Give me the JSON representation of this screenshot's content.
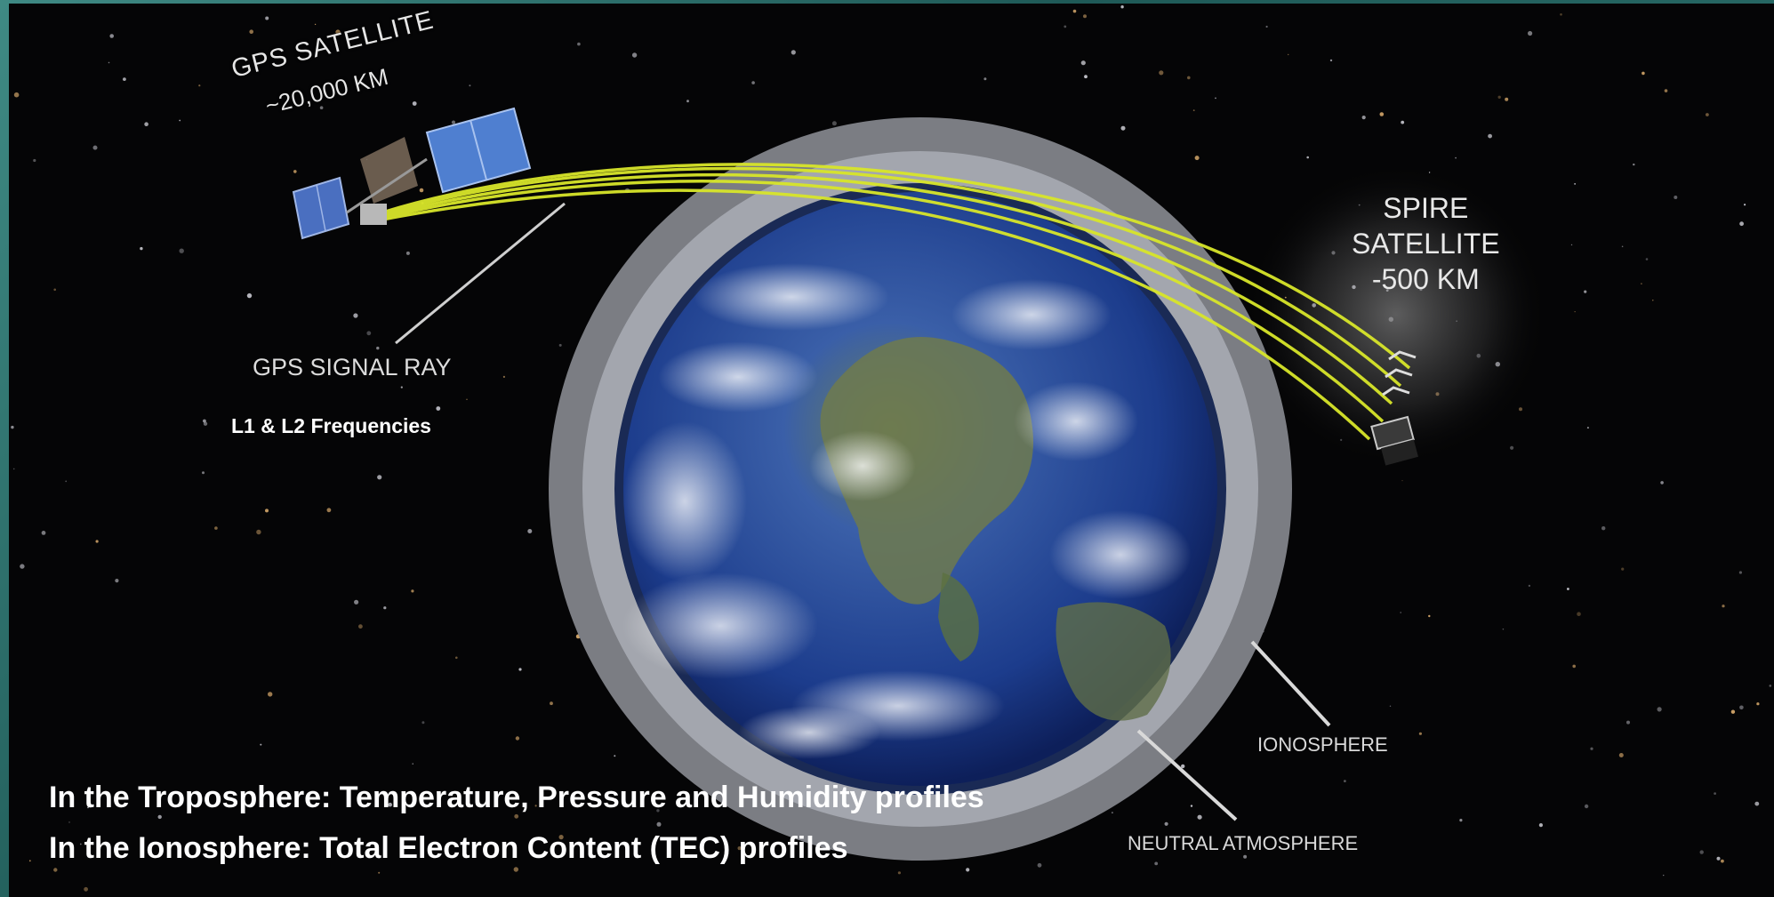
{
  "labels": {
    "gps_satellite_title": "GPS SATELLITE",
    "gps_satellite_altitude": "~20,000 KM",
    "gps_signal_ray": "GPS SIGNAL RAY",
    "frequencies": "L1 & L2 Frequencies",
    "spire_satellite": [
      "SPIRE",
      "SATELLITE",
      "-500 KM"
    ],
    "ionosphere": "IONOSPHERE",
    "neutral_atmosphere": "NEUTRAL ATMOSPHERE"
  },
  "captions": {
    "troposphere": "In the Troposphere: Temperature, Pressure and Humidity profiles",
    "ionosphere": "In the Ionosphere: Total Electron Content (TEC) profiles"
  },
  "colors": {
    "signal_ray": "#d8e62a",
    "space": "#050506",
    "ocean": "#1f3f8f",
    "ionosphere_ring": "#8e9096",
    "neutral_ring": "#a9acb4",
    "frame": "#2f7772"
  },
  "icons": [
    "gps-satellite-icon",
    "spire-satellite-icon",
    "earth-globe"
  ]
}
